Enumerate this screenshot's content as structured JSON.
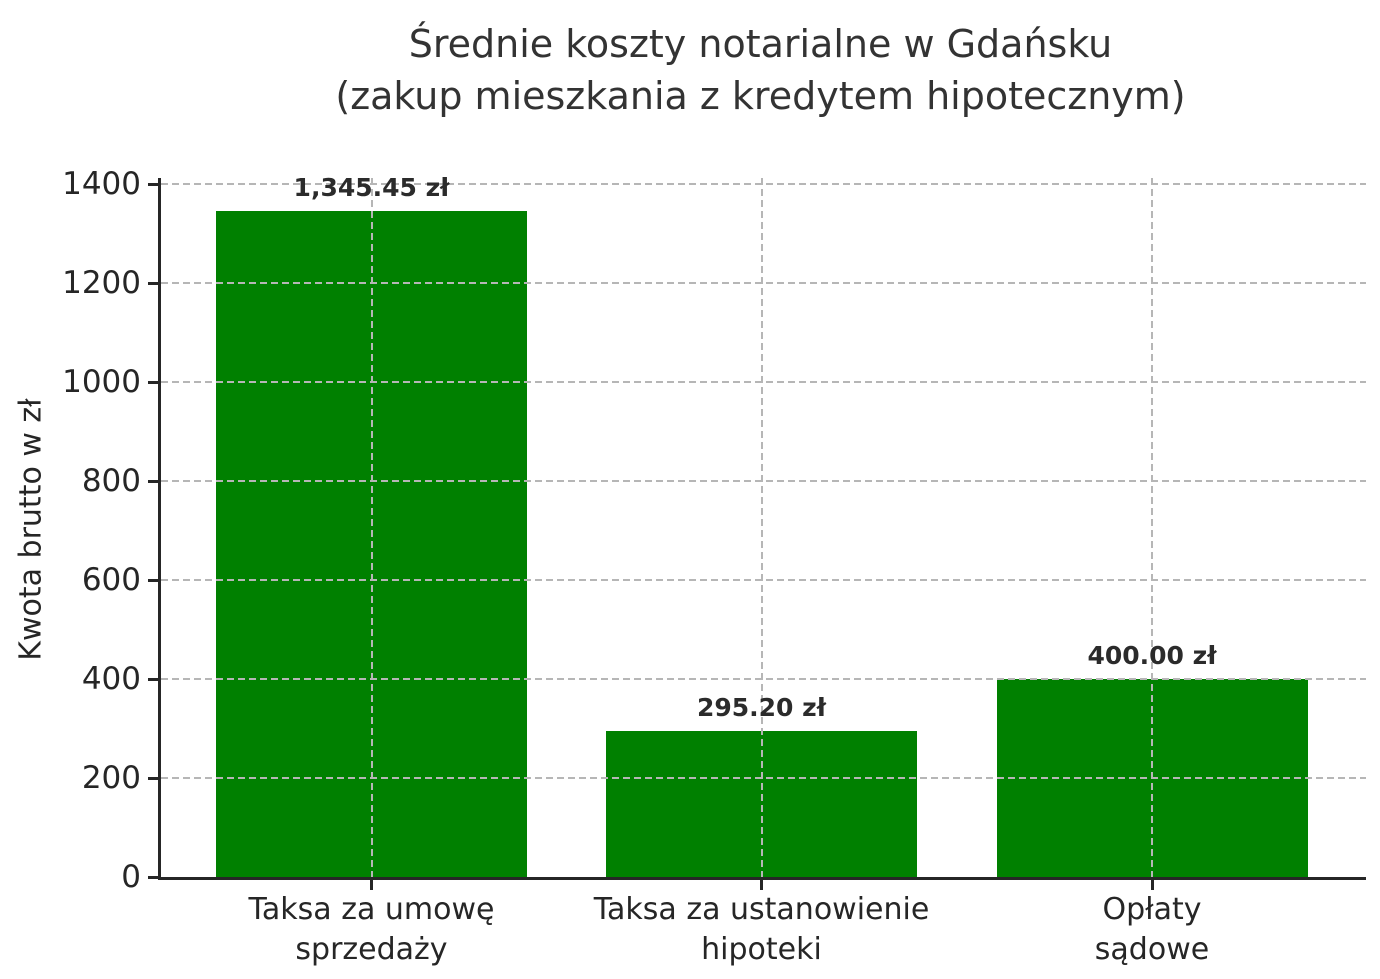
{
  "chart_data": {
    "type": "bar",
    "title": "Średnie koszty notarialne w Gdańsku\n(zakup mieszkania z kredytem hipotecznym)",
    "ylabel": "Kwota brutto w zł",
    "xlabel": "",
    "categories": [
      "Taksa za umowę\nsprzedaży",
      "Taksa za ustanowienie\nhipoteki",
      "Opłaty\nsądowe"
    ],
    "values": [
      1345.45,
      295.2,
      400.0
    ],
    "value_labels": [
      "1,345.45 zł",
      "295.20 zł",
      "400.00 zł"
    ],
    "yticks": [
      0,
      200,
      400,
      600,
      800,
      1000,
      1200,
      1400
    ],
    "ylim": [
      0,
      1412.7
    ],
    "grid": "dashed gridlines on both axes, drawn above bars",
    "legend": "none",
    "colors": {
      "bar": "#008000",
      "grid": "#b6b6b6",
      "spine": "#262626",
      "text": "#262626",
      "background": "#ffffff"
    }
  }
}
